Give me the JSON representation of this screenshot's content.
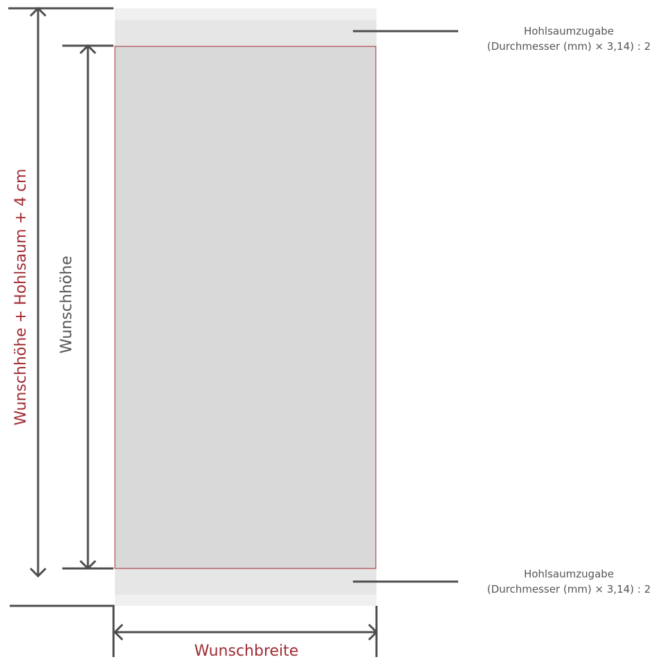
{
  "diagram": {
    "height_label_outer": "Wunschhöhe + Hohlsaum + 4 cm",
    "height_label_inner": "Wunschhöhe",
    "width_label": "Wunschbreite",
    "hem_top": {
      "line1": "Hohlsaumzugabe",
      "line2": "(Durchmesser (mm) × 3,14) : 2"
    },
    "hem_bottom": {
      "line1": "Hohlsaumzugabe",
      "line2": "(Durchmesser (mm) × 3,14) : 2"
    }
  },
  "colors": {
    "accent_red": "#a12b32",
    "panel_gray": "#d9d9d9",
    "hem_gray": "#e6e6e6",
    "margin_gray": "#f0f0f0",
    "line_gray": "#4d4d4d"
  }
}
